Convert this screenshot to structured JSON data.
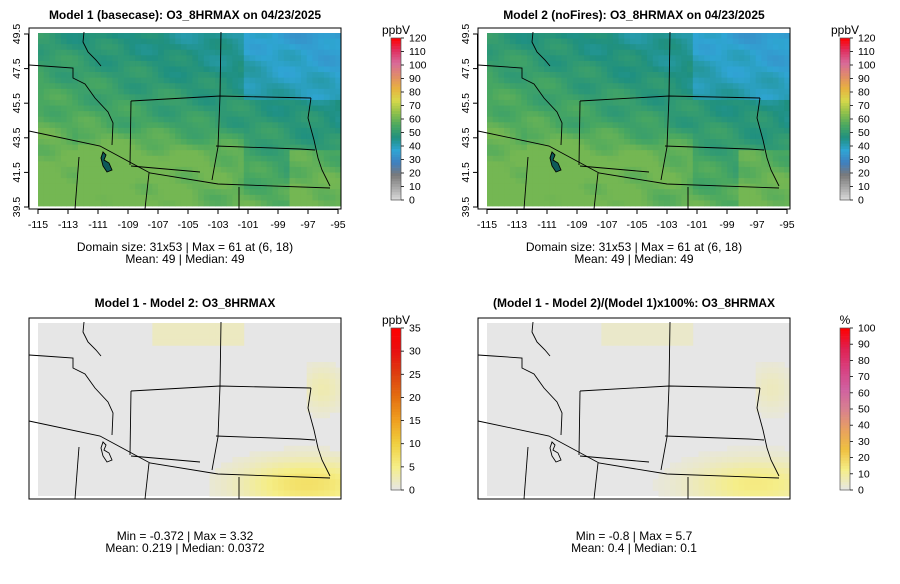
{
  "chart_data": [
    {
      "type": "heatmap",
      "title": "Model 1 (basecase): O3_8HRMAX on 04/23/2025",
      "units": "ppbV",
      "domain_size": "31x53",
      "x_ticks": [
        -115,
        -113,
        -111,
        -109,
        -107,
        -105,
        -103,
        -101,
        -99,
        -97,
        -95
      ],
      "y_ticks": [
        39.5,
        41.5,
        43.5,
        45.5,
        47.5,
        49.5
      ],
      "xlim": [
        -115.5,
        -94.5
      ],
      "ylim": [
        39.5,
        50.0
      ],
      "colorbar_ticks": [
        0,
        10,
        20,
        30,
        40,
        50,
        60,
        70,
        80,
        90,
        100,
        110,
        120
      ],
      "colorbar_range": [
        0,
        120
      ],
      "field": "absolute_o3",
      "stats": [
        "Domain size: 31x53 | Max = 61 at (6, 18)",
        "Mean: 49 |  Median: 49"
      ],
      "max": 61,
      "mean": 49,
      "median": 49
    },
    {
      "type": "heatmap",
      "title": "Model 2 (noFires): O3_8HRMAX on 04/23/2025",
      "units": "ppbV",
      "domain_size": "31x53",
      "x_ticks": [
        -115,
        -113,
        -111,
        -109,
        -107,
        -105,
        -103,
        -101,
        -99,
        -97,
        -95
      ],
      "y_ticks": [
        39.5,
        41.5,
        43.5,
        45.5,
        47.5,
        49.5
      ],
      "xlim": [
        -115.5,
        -94.5
      ],
      "ylim": [
        39.5,
        50.0
      ],
      "colorbar_ticks": [
        0,
        10,
        20,
        30,
        40,
        50,
        60,
        70,
        80,
        90,
        100,
        110,
        120
      ],
      "colorbar_range": [
        0,
        120
      ],
      "field": "absolute_o3",
      "stats": [
        "Domain size: 31x53 | Max = 61 at (6, 18)",
        "Mean: 49 |  Median: 49"
      ],
      "max": 61,
      "mean": 49,
      "median": 49
    },
    {
      "type": "heatmap",
      "title": "Model 1 - Model 2: O3_8HRMAX",
      "units": "ppbV",
      "xlim": [
        -115.5,
        -94.5
      ],
      "ylim": [
        39.5,
        50.0
      ],
      "colorbar_ticks": [
        0,
        5,
        10,
        15,
        20,
        25,
        30,
        35
      ],
      "colorbar_range": [
        0,
        35
      ],
      "field": "difference",
      "stats": [
        "Min = -0.372 | Max = 3.32",
        "Mean: 0.219 |  Median: 0.0372"
      ],
      "min": -0.372,
      "max": 3.32,
      "mean": 0.219,
      "median": 0.0372
    },
    {
      "type": "heatmap",
      "title": "(Model 1 - Model 2)/(Model 1)x100%: O3_8HRMAX",
      "units": "%",
      "xlim": [
        -115.5,
        -94.5
      ],
      "ylim": [
        39.5,
        50.0
      ],
      "colorbar_ticks": [
        0,
        10,
        20,
        30,
        40,
        50,
        60,
        70,
        80,
        90,
        100
      ],
      "colorbar_range": [
        0,
        100
      ],
      "field": "percent",
      "stats": [
        "Min = -0.8 | Max = 5.7",
        "Mean: 0.4 |  Median: 0.1"
      ],
      "min": -0.8,
      "max": 5.7,
      "mean": 0.4,
      "median": 0.1
    }
  ],
  "colors": {
    "abs_scale": [
      "#dcdcdc",
      "#a9a9a9",
      "#7a7a7a",
      "#3f7fbf",
      "#2fa5d4",
      "#1f9080",
      "#4aa860",
      "#8fc04a",
      "#d8d84a",
      "#e8b040",
      "#e08a6a",
      "#d86a9a",
      "#e03060",
      "#ff0000"
    ],
    "diff_scale": [
      "#e6e6e6",
      "#f5ee88",
      "#f0d040",
      "#f0a020",
      "#e47010",
      "#dd4010",
      "#e81010",
      "#ff0000"
    ],
    "pct_scale": [
      "#e6e6e6",
      "#f5ee88",
      "#f0c040",
      "#e8a060",
      "#d88090",
      "#d060a0",
      "#d84080",
      "#e02050",
      "#ff0000"
    ],
    "ocean": "#ffffff",
    "border": "#000000"
  }
}
